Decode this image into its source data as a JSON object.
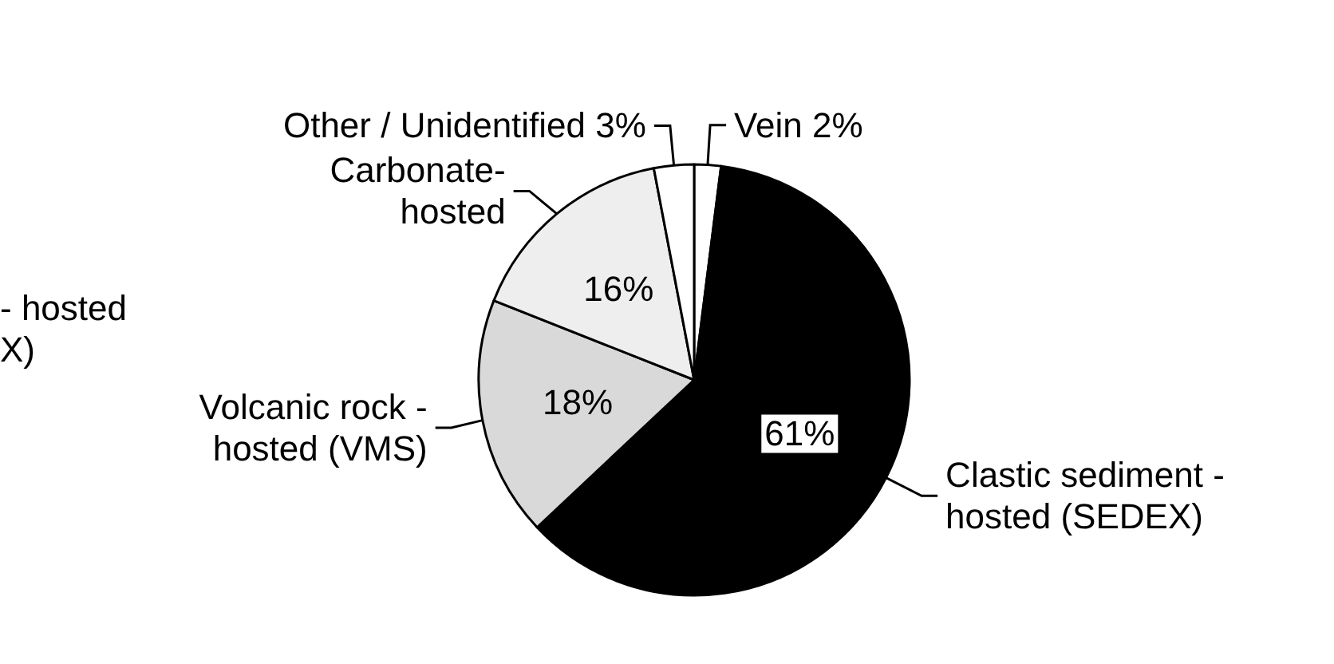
{
  "chart_data": {
    "type": "pie",
    "categories": [
      "Vein 2%",
      "Clastic sediment -\nhosted (SEDEX)",
      "Volcanic rock -\nhosted (VMS)",
      "Carbonate-\nhosted",
      "Other / Unidentified 3%"
    ],
    "values": [
      2,
      61,
      18,
      16,
      3
    ],
    "colors": [
      "#ffffff",
      "#000000",
      "#d9d9d9",
      "#eeeeee",
      "#ffffff"
    ],
    "value_labels": [
      null,
      "61%",
      "18%",
      "16%",
      null
    ],
    "annotations": [
      "- hosted\nX)"
    ]
  }
}
